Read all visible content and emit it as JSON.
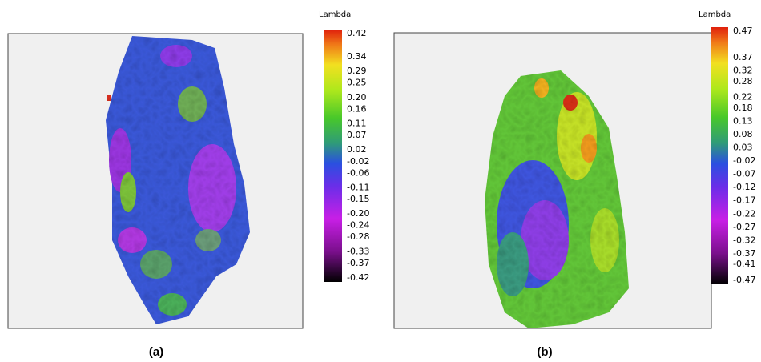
{
  "chart_data": [
    {
      "type": "heatmap",
      "colorbar_label": "Lambda",
      "caption": "(a)",
      "clim": [
        -0.42,
        0.42
      ],
      "cticks": [
        0.42,
        0.34,
        0.29,
        0.25,
        {
          "value": 0.2,
          "label": "0.20"
        },
        0.16,
        0.11,
        0.07,
        0.02,
        -0.02,
        -0.06,
        -0.11,
        -0.15,
        {
          "value": -0.2,
          "label": "-0.20"
        },
        -0.24,
        -0.28,
        -0.33,
        -0.37,
        -0.42
      ]
    },
    {
      "type": "heatmap",
      "colorbar_label": "Lambda",
      "caption": "(b)",
      "clim": [
        -0.47,
        0.47
      ],
      "cticks": [
        0.47,
        0.37,
        0.32,
        0.28,
        0.22,
        0.18,
        0.13,
        0.08,
        0.03,
        -0.02,
        -0.07,
        -0.12,
        -0.17,
        -0.22,
        -0.27,
        -0.32,
        -0.37,
        -0.41,
        -0.47
      ]
    }
  ]
}
